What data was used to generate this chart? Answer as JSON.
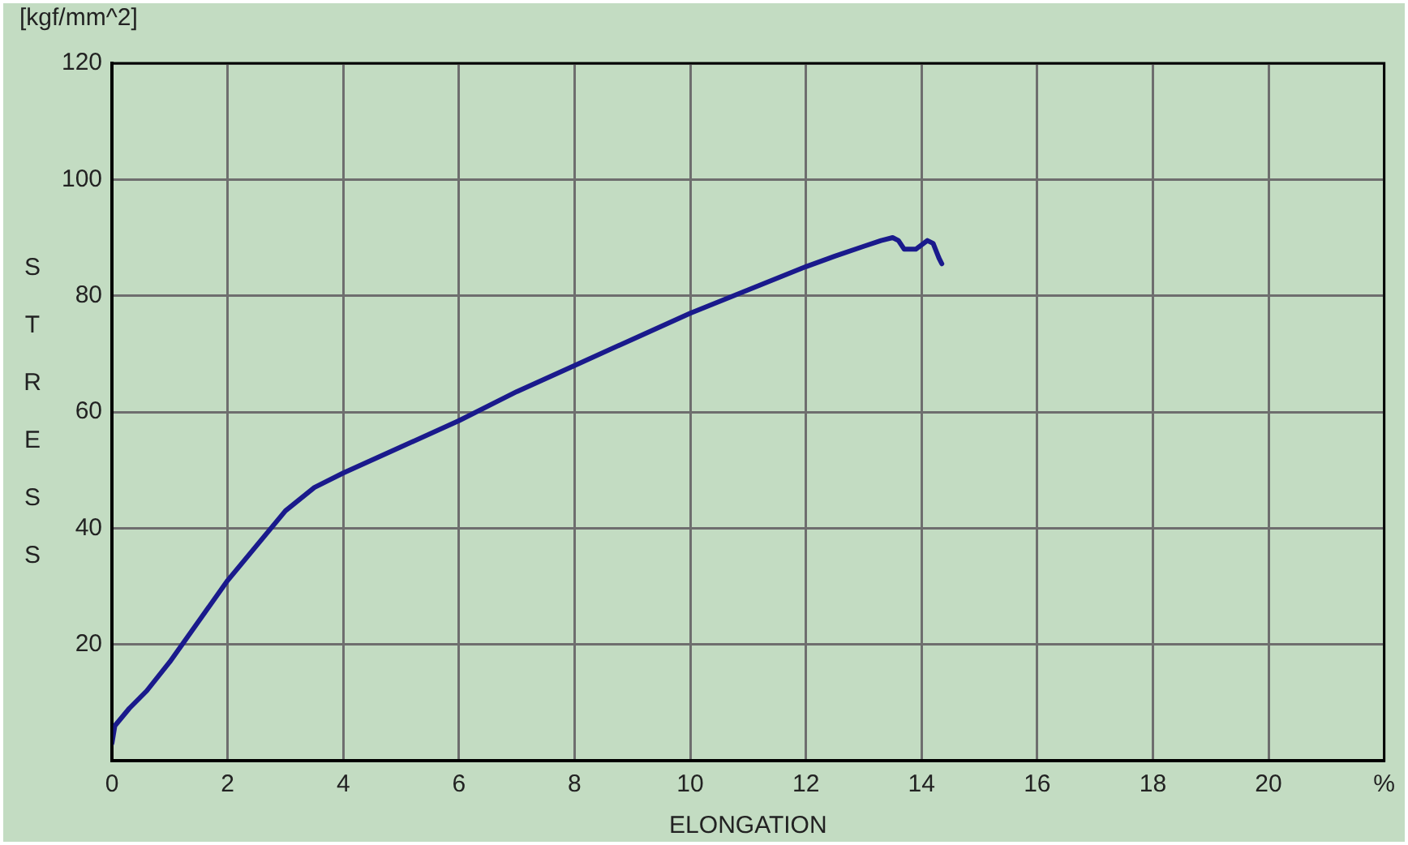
{
  "chart_data": {
    "type": "line",
    "xlabel": "ELONGATION",
    "ylabel": "STRESS",
    "annotations": [
      "[kgf/mm^2]"
    ],
    "xlim": [
      0,
      22
    ],
    "xticks": [
      0,
      2,
      4,
      6,
      8,
      10,
      12,
      14,
      16,
      18,
      20,
      {
        "value": 22,
        "label": "%"
      }
    ],
    "ylim": [
      0,
      120
    ],
    "yticks": [
      {
        "value": 0,
        "label": null
      },
      20,
      40,
      60,
      80,
      100,
      120
    ],
    "grid": true,
    "legend": false,
    "marker": "none",
    "line_style": "solid",
    "series": [
      {
        "color": "#1a1a8c",
        "x": [
          0,
          0.05,
          0.3,
          0.6,
          1,
          1.5,
          2,
          2.5,
          3,
          3.5,
          4,
          5,
          6,
          7,
          8,
          9,
          10,
          11,
          12,
          12.5,
          13,
          13.3,
          13.5,
          13.6,
          13.7,
          13.9,
          14.1,
          14.2,
          14.3,
          14.35
        ],
        "values": [
          3,
          6,
          9,
          12,
          17,
          24,
          31,
          37,
          43,
          47,
          49.5,
          54,
          58.5,
          63.5,
          68,
          72.5,
          77,
          81,
          85,
          86.8,
          88.5,
          89.5,
          90,
          89.5,
          88,
          88,
          89.5,
          89,
          86.5,
          85.5
        ]
      }
    ]
  }
}
